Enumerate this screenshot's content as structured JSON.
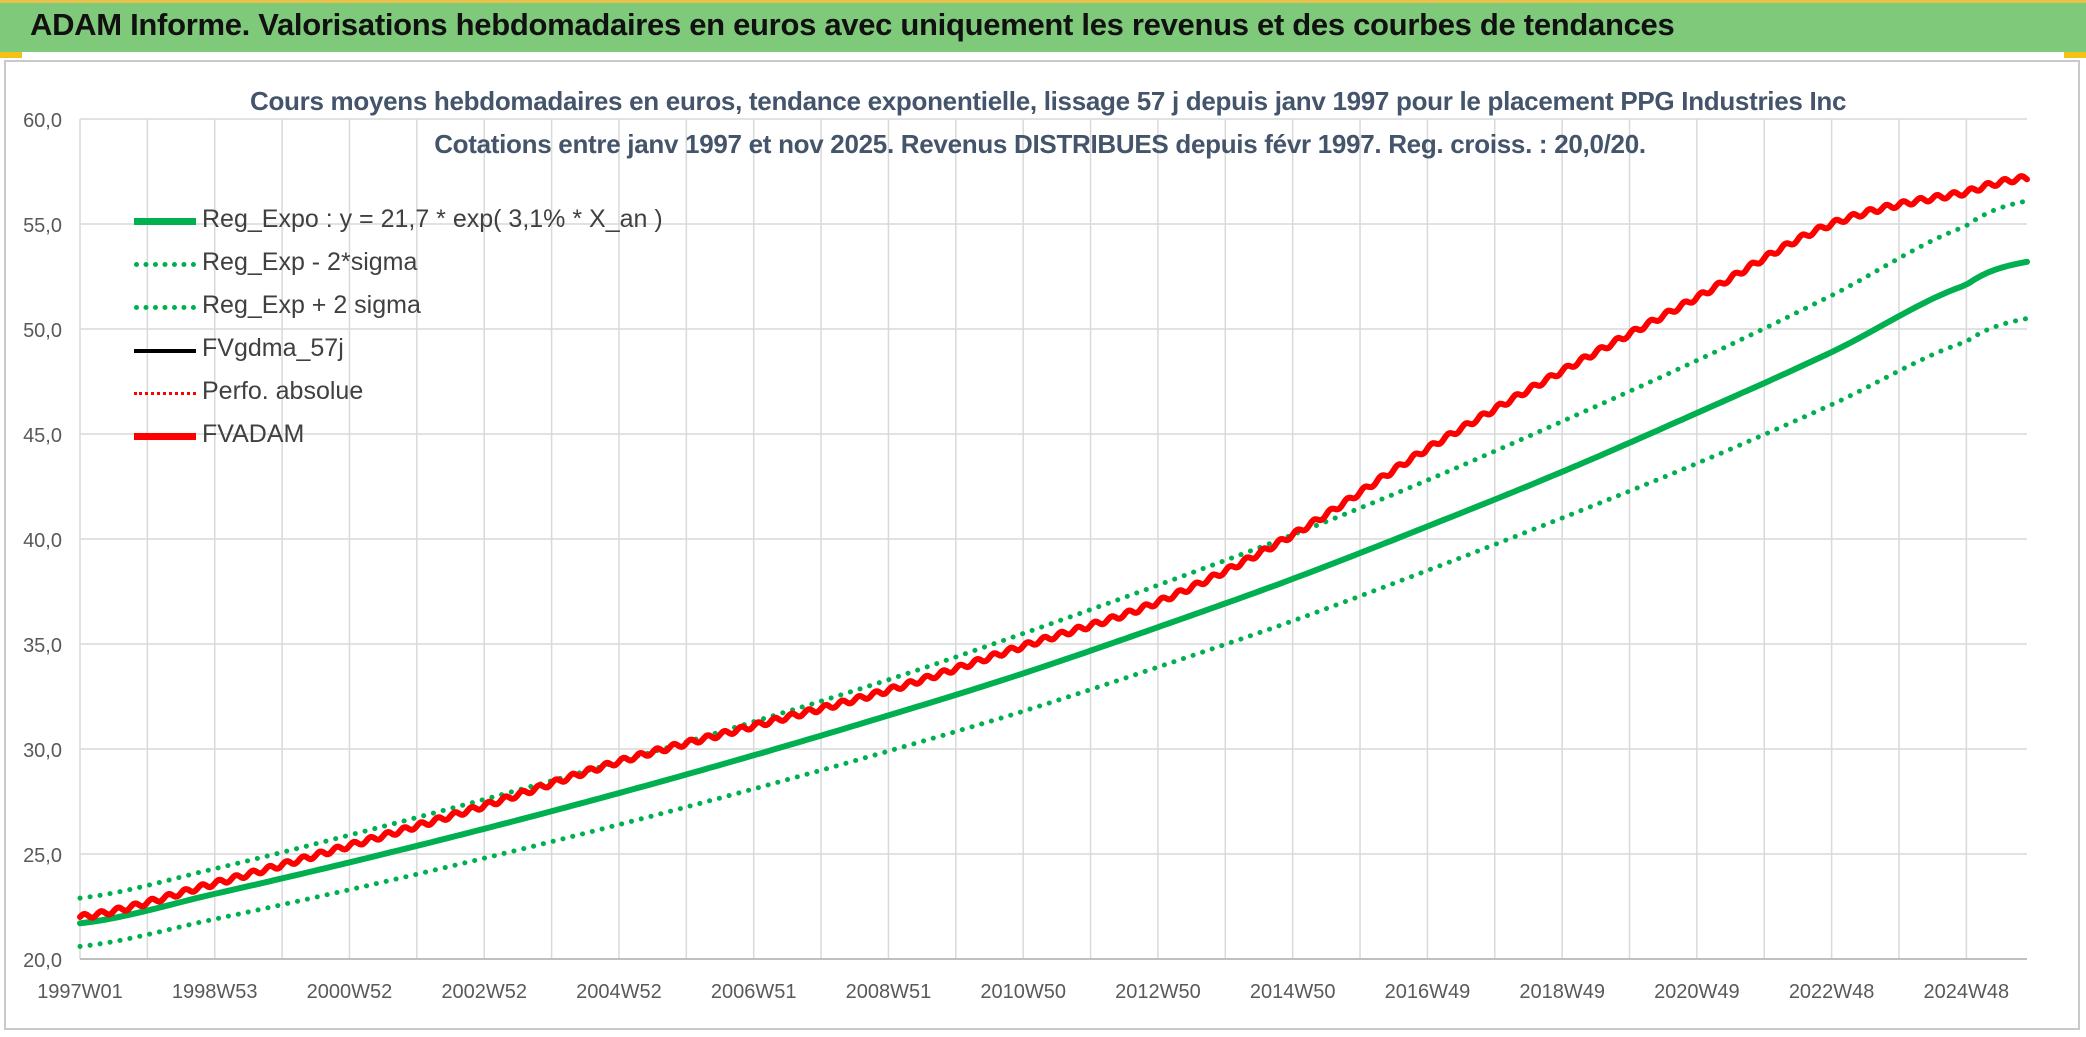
{
  "banner": {
    "title": "ADAM Informe. Valorisations hebdomadaires en euros avec uniquement les revenus et des courbes de tendances"
  },
  "colors": {
    "banner_bg": "#7fc97a",
    "trend_green": "#00b050",
    "series_red": "#ff0000",
    "series_black": "#000000",
    "axis_text": "#595959",
    "title_text": "#44546a",
    "grid": "#d9d9d9"
  },
  "chart_data": {
    "type": "line",
    "title": "Cours moyens hebdomadaires en euros, tendance exponentielle, lissage 57 j depuis janv 1997 pour le placement PPG Industries Inc",
    "subtitle": "Cotations entre janv 1997 et nov 2025. Revenus DISTRIBUES depuis févr 1997. Reg. croiss. : 20,0/20.",
    "xlabel": "",
    "ylabel": "",
    "ylim": [
      20,
      60
    ],
    "ytick_values": [
      20,
      25,
      30,
      35,
      40,
      45,
      50,
      55,
      60
    ],
    "ytick_labels": [
      "20,0",
      "25,0",
      "30,0",
      "35,0",
      "40,0",
      "45,0",
      "50,0",
      "55,0",
      "60,0"
    ],
    "xlim_years": [
      0,
      28.9
    ],
    "xtick_years": [
      0,
      2,
      4,
      6,
      8,
      10,
      12,
      14,
      16,
      18,
      20,
      22,
      24,
      26,
      28
    ],
    "xtick_labels": [
      "1997W01",
      "1998W53",
      "2000W52",
      "2002W52",
      "2004W52",
      "2006W51",
      "2008W51",
      "2010W50",
      "2012W50",
      "2014W50",
      "2016W49",
      "2018W49",
      "2020W49",
      "2022W48",
      "2024W48"
    ],
    "grid": true,
    "legend_position": "top-left",
    "series": [
      {
        "name": "Reg_Expo : y = 21,7 * exp( 3,1% *  X_an )",
        "style": "solid-thick",
        "color": "#00b050",
        "x_years": [
          0,
          2,
          4,
          6,
          8,
          10,
          12,
          14,
          16,
          18,
          20,
          22,
          24,
          26,
          28,
          28.9
        ],
        "values": [
          21.7,
          23.1,
          24.6,
          26.2,
          27.9,
          29.7,
          31.6,
          33.6,
          35.8,
          38.1,
          40.6,
          43.2,
          46.0,
          48.9,
          52.1,
          53.2
        ]
      },
      {
        "name": "Reg_Exp - 2*sigma",
        "style": "dotted",
        "color": "#00b050",
        "x_years": [
          0,
          2,
          4,
          6,
          8,
          10,
          12,
          14,
          16,
          18,
          20,
          22,
          24,
          26,
          28,
          28.9
        ],
        "values": [
          20.6,
          21.9,
          23.3,
          24.8,
          26.4,
          28.1,
          29.9,
          31.8,
          33.9,
          36.1,
          38.5,
          41.0,
          43.6,
          46.4,
          49.4,
          50.5
        ]
      },
      {
        "name": "Reg_Exp + 2 sigma",
        "style": "dotted",
        "color": "#00b050",
        "x_years": [
          0,
          2,
          4,
          6,
          8,
          10,
          12,
          14,
          16,
          18,
          20,
          22,
          24,
          26,
          28,
          28.9
        ],
        "values": [
          22.9,
          24.3,
          25.9,
          27.6,
          29.4,
          31.3,
          33.3,
          35.5,
          37.8,
          40.2,
          42.8,
          45.6,
          48.5,
          51.6,
          54.9,
          56.1
        ]
      },
      {
        "name": "FVgdma_57j",
        "style": "solid",
        "color": "#000000",
        "x_years": [],
        "values": []
      },
      {
        "name": "Perfo. absolue",
        "style": "dotted",
        "color": "#ff0000",
        "x_years": [],
        "values": []
      },
      {
        "name": "FVADAM",
        "style": "solid-thick",
        "color": "#ff0000",
        "x_years": [
          0,
          2,
          4,
          6,
          8,
          10,
          12,
          14,
          16,
          18,
          20,
          22,
          24,
          26,
          28,
          28.9
        ],
        "values": [
          22.0,
          23.6,
          25.4,
          27.3,
          29.4,
          31.1,
          32.8,
          34.9,
          37.0,
          40.2,
          44.3,
          48.0,
          51.5,
          55.0,
          56.5,
          57.2
        ]
      }
    ]
  }
}
